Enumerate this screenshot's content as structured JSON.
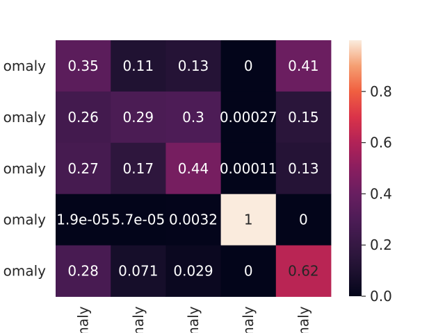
{
  "chart_data": {
    "type": "heatmap",
    "title": "",
    "xlabel": "",
    "ylabel": "",
    "row_labels": [
      "omaly",
      "omaly",
      "omaly",
      "omaly",
      "omaly"
    ],
    "col_labels": [
      "maly",
      "maly",
      "maly",
      "maly",
      "maly"
    ],
    "values": [
      [
        0.35,
        0.11,
        0.13,
        0,
        0.41
      ],
      [
        0.26,
        0.29,
        0.3,
        0.00027,
        0.15
      ],
      [
        0.27,
        0.17,
        0.44,
        0.00011,
        0.13
      ],
      [
        1.9e-05,
        5.7e-05,
        0.0032,
        1,
        0
      ],
      [
        0.28,
        0.071,
        0.029,
        0,
        0.62
      ]
    ],
    "annotations": [
      [
        "0.35",
        "0.11",
        "0.13",
        "0",
        "0.41"
      ],
      [
        "0.26",
        "0.29",
        "0.3",
        "0.00027",
        "0.15"
      ],
      [
        "0.27",
        "0.17",
        "0.44",
        "0.00011",
        "0.13"
      ],
      [
        "1.9e-05",
        "5.7e-05",
        "0.0032",
        "1",
        "0"
      ],
      [
        "0.28",
        "0.071",
        "0.029",
        "0",
        "0.62"
      ]
    ],
    "colorbar": {
      "range": [
        0,
        1
      ],
      "ticks": [
        0.0,
        0.2,
        0.4,
        0.6,
        0.8
      ],
      "tick_labels": [
        "0.0",
        "0.2",
        "0.4",
        "0.6",
        "0.8"
      ],
      "colormap": "rocket"
    }
  }
}
